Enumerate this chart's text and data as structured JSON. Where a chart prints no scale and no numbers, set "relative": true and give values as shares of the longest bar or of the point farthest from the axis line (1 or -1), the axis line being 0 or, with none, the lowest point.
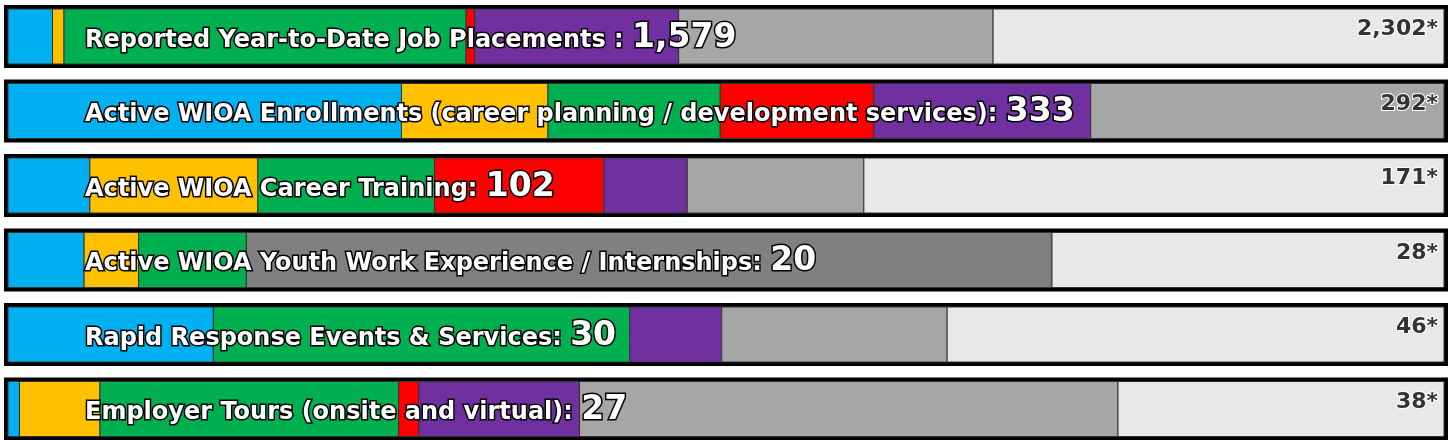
{
  "chart_data": {
    "type": "bar",
    "orientation": "horizontal",
    "stacked": true,
    "relative": true,
    "categories": [
      "Reported Year-to-Date Job Placements : 1,579",
      "Active WIOA Enrollments (career planning / development services): 333",
      "Active WIOA Career Training: 102",
      "Active WIOA Youth Work Experience / Internships: 20",
      "Rapid Response Events & Services: 30",
      "Employer Tours (onsite and virtual): 27"
    ],
    "series": [
      {
        "color": "#00b0f0",
        "values": [
          0.031,
          0.274,
          0.057,
          0.053,
          0.143,
          0.008
        ]
      },
      {
        "color": "#ffc000",
        "values": [
          0.008,
          0.102,
          0.117,
          0.038,
          0,
          0.056
        ]
      },
      {
        "color": "#00b050",
        "values": [
          0.28,
          0.12,
          0.123,
          0.075,
          0.29,
          0.208
        ]
      },
      {
        "color": "#ff0000",
        "values": [
          0.006,
          0.107,
          0.118,
          0,
          0,
          0.014
        ]
      },
      {
        "color": "#7030a0",
        "values": [
          0.142,
          0.151,
          0.058,
          0,
          0.064,
          0.112
        ]
      },
      {
        "color": "#a6a6a6",
        "colors": [
          null,
          null,
          null,
          "#808080",
          null,
          null
        ],
        "values": [
          0.219,
          0.246,
          0.123,
          0.561,
          0.157,
          0.375
        ]
      },
      {
        "color": "#e8e8e8",
        "values": [
          0.314,
          0,
          0.404,
          0.273,
          0.346,
          0.227
        ]
      }
    ],
    "annotations": [
      "2,302*",
      "292*",
      "171*",
      "28*",
      "46*",
      "38*"
    ]
  }
}
